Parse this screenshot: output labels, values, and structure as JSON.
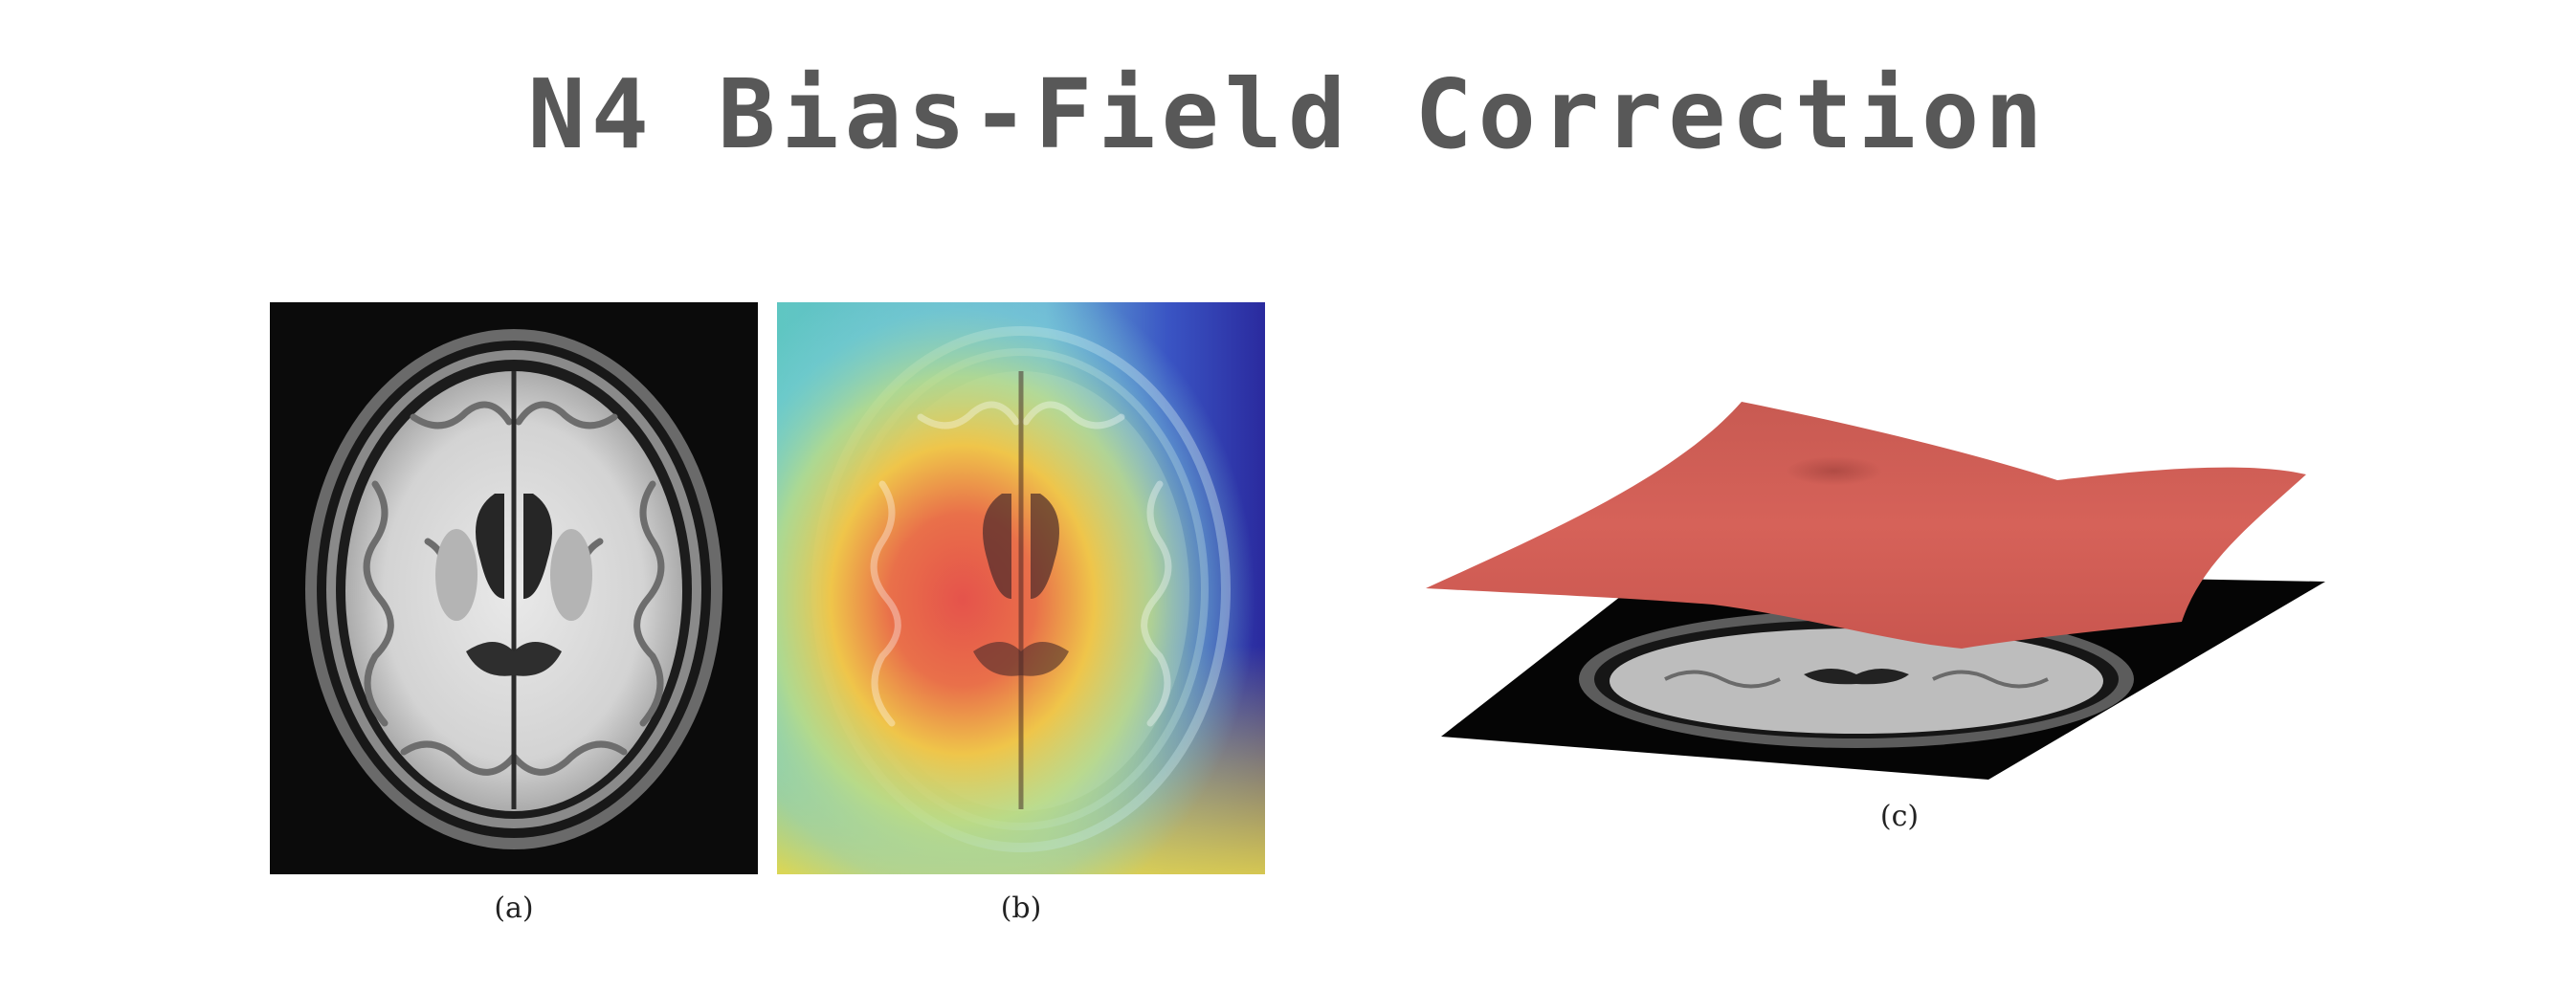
{
  "header": {
    "title": "N4 Bias-Field Correction"
  },
  "panels": [
    {
      "caption": "(a)",
      "content": "axial T1 brain MRI slice"
    },
    {
      "caption": "(b)",
      "content": "MRI slice with bias-field heatmap overlay"
    },
    {
      "caption": "(c)",
      "content": "3D bias-field surface above MRI slice"
    }
  ],
  "colors": {
    "title_text": "#585858",
    "surface": "#d55f57",
    "overlay_hot": "#e04040",
    "overlay_warm": "#f0d040",
    "overlay_cool": "#5fc8d0",
    "overlay_cold": "#2a2aa8"
  }
}
